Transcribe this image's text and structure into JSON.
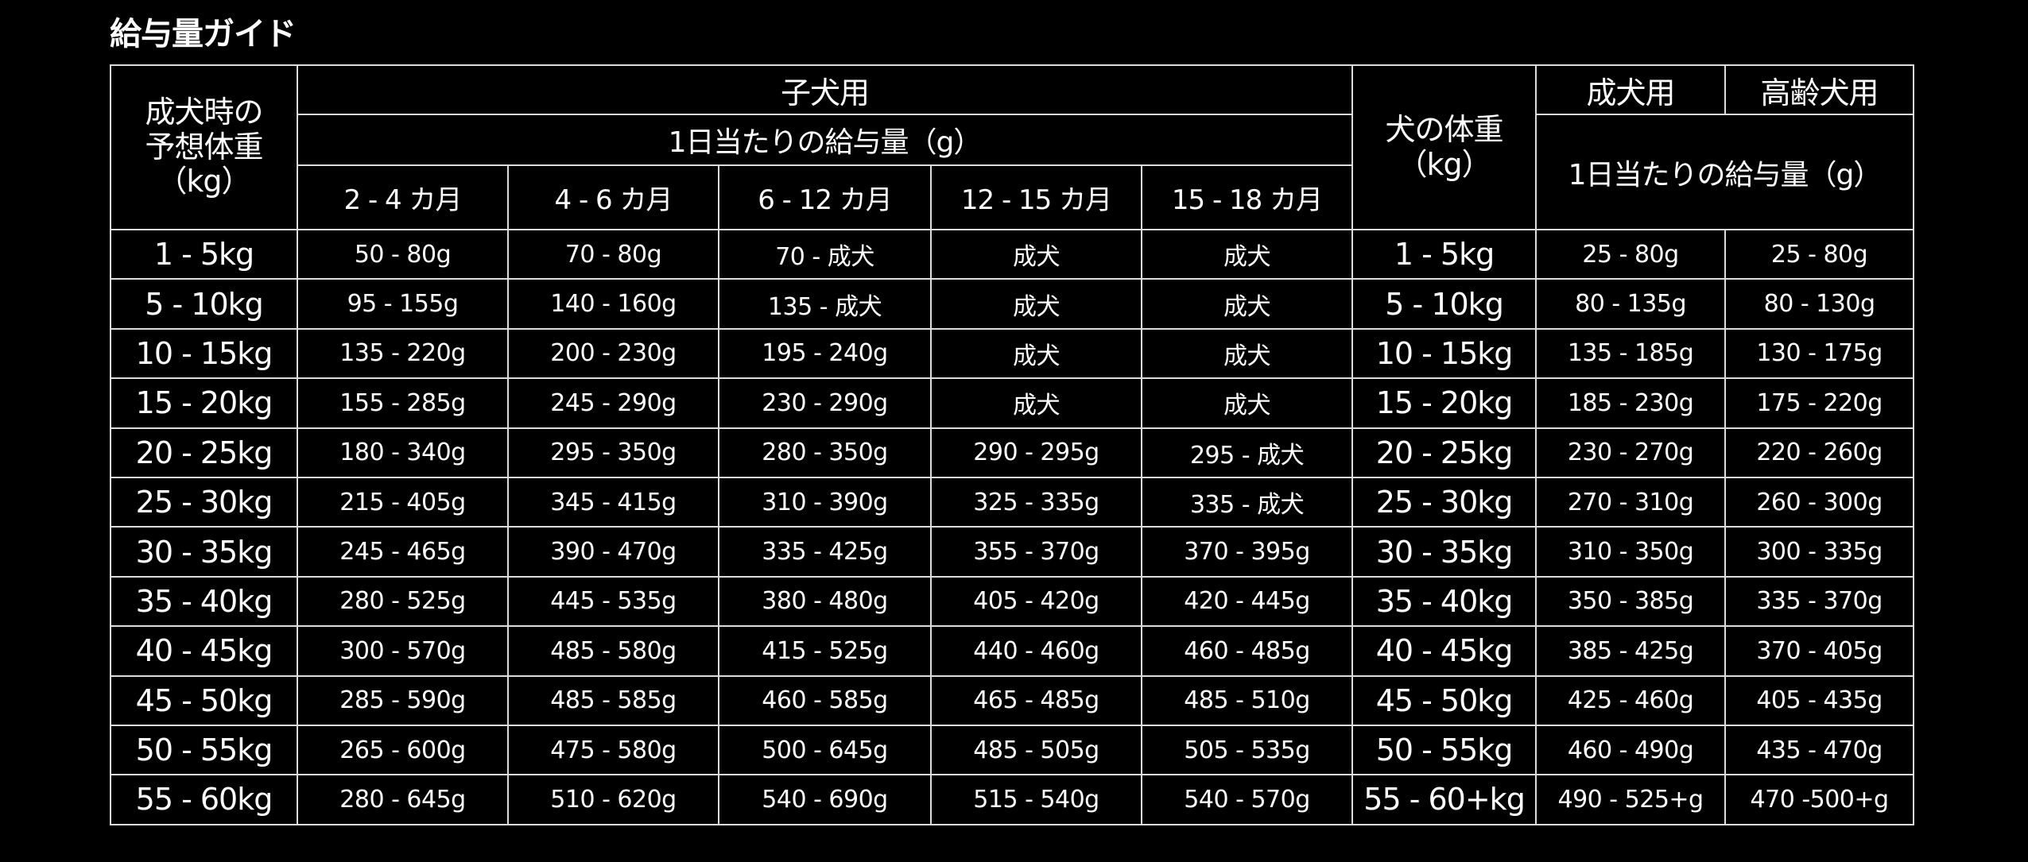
{
  "title": "給与量ガイド",
  "header": {
    "adult_weight_label": [
      "成犬時の",
      "予想体重",
      "（kg）"
    ],
    "puppy_label": "子犬用",
    "daily_amount_label": "1日当たりの給与量（g）",
    "months": [
      "2 - 4 カ月",
      "4 - 6 カ月",
      "6 - 12 カ月",
      "12 - 15 カ月",
      "15 - 18 カ月"
    ],
    "dog_weight_label": [
      "犬の体重",
      "（kg）"
    ],
    "adult_label": "成犬用",
    "senior_label": "高齢犬用",
    "daily_amount_label_right": "1日当たりの給与量（g）"
  },
  "rows": [
    {
      "expected_weight": "1 - 5kg",
      "puppy": [
        "50 - 80g",
        "70 - 80g",
        "70 - 成犬",
        "成犬",
        "成犬"
      ],
      "dog_weight": "1 - 5kg",
      "adult": "25 - 80g",
      "senior": "25 - 80g"
    },
    {
      "expected_weight": "5 - 10kg",
      "puppy": [
        "95 - 155g",
        "140 - 160g",
        "135 - 成犬",
        "成犬",
        "成犬"
      ],
      "dog_weight": "5 - 10kg",
      "adult": "80 - 135g",
      "senior": "80 - 130g"
    },
    {
      "expected_weight": "10 - 15kg",
      "puppy": [
        "135 - 220g",
        "200 - 230g",
        "195 - 240g",
        "成犬",
        "成犬"
      ],
      "dog_weight": "10 - 15kg",
      "adult": "135 - 185g",
      "senior": "130 - 175g"
    },
    {
      "expected_weight": "15 - 20kg",
      "puppy": [
        "155 - 285g",
        "245 - 290g",
        "230 - 290g",
        "成犬",
        "成犬"
      ],
      "dog_weight": "15 - 20kg",
      "adult": "185 - 230g",
      "senior": "175 - 220g"
    },
    {
      "expected_weight": "20 - 25kg",
      "puppy": [
        "180 - 340g",
        "295 - 350g",
        "280 - 350g",
        "290 - 295g",
        "295 - 成犬"
      ],
      "dog_weight": "20 - 25kg",
      "adult": "230 - 270g",
      "senior": "220 - 260g"
    },
    {
      "expected_weight": "25 - 30kg",
      "puppy": [
        "215 - 405g",
        "345 - 415g",
        "310 - 390g",
        "325 - 335g",
        "335 - 成犬"
      ],
      "dog_weight": "25 - 30kg",
      "adult": "270 - 310g",
      "senior": "260 - 300g"
    },
    {
      "expected_weight": "30 - 35kg",
      "puppy": [
        "245 - 465g",
        "390 - 470g",
        "335 - 425g",
        "355 - 370g",
        "370 - 395g"
      ],
      "dog_weight": "30 - 35kg",
      "adult": "310 - 350g",
      "senior": "300 - 335g"
    },
    {
      "expected_weight": "35 - 40kg",
      "puppy": [
        "280 - 525g",
        "445 - 535g",
        "380 - 480g",
        "405 - 420g",
        "420 - 445g"
      ],
      "dog_weight": "35 - 40kg",
      "adult": "350 - 385g",
      "senior": "335 - 370g"
    },
    {
      "expected_weight": "40 - 45kg",
      "puppy": [
        "300 - 570g",
        "485 - 580g",
        "415 - 525g",
        "440 - 460g",
        "460 - 485g"
      ],
      "dog_weight": "40 - 45kg",
      "adult": "385 - 425g",
      "senior": "370 - 405g"
    },
    {
      "expected_weight": "45 - 50kg",
      "puppy": [
        "285 - 590g",
        "485 - 585g",
        "460 - 585g",
        "465 - 485g",
        "485 - 510g"
      ],
      "dog_weight": "45 - 50kg",
      "adult": "425 - 460g",
      "senior": "405 - 435g"
    },
    {
      "expected_weight": "50 - 55kg",
      "puppy": [
        "265 - 600g",
        "475 - 580g",
        "500 - 645g",
        "485 - 505g",
        "505 - 535g"
      ],
      "dog_weight": "50 - 55kg",
      "adult": "460 - 490g",
      "senior": "435 - 470g"
    },
    {
      "expected_weight": "55 - 60kg",
      "puppy": [
        "280 - 645g",
        "510 - 620g",
        "540 - 690g",
        "515 - 540g",
        "540 - 570g"
      ],
      "dog_weight": "55 - 60+kg",
      "adult": "490 - 525+g",
      "senior": "470 -500+g"
    }
  ]
}
